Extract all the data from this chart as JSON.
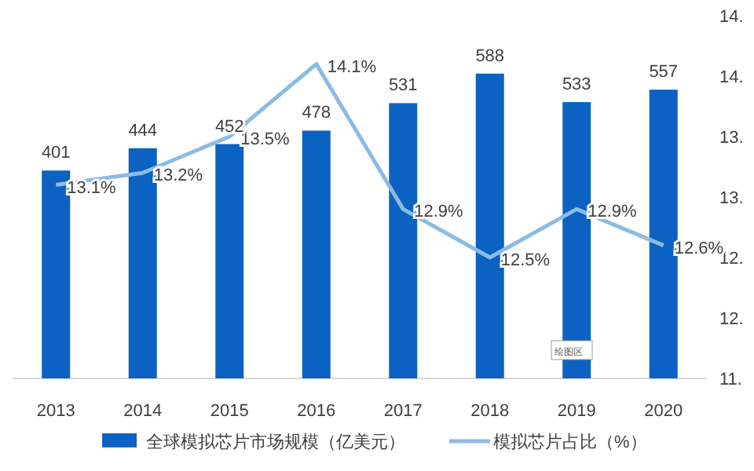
{
  "chart_data": {
    "type": "bar",
    "categories": [
      "2013",
      "2014",
      "2015",
      "2016",
      "2017",
      "2018",
      "2019",
      "2020"
    ],
    "series": [
      {
        "name": "全球模拟芯片市场规模（亿美元）",
        "color": "#0b62c2",
        "values": [
          401,
          444,
          452,
          478,
          531,
          588,
          533,
          557
        ],
        "value_labels": [
          "401",
          "444",
          "452",
          "478",
          "531",
          "588",
          "533",
          "557"
        ]
      },
      {
        "name": "模拟芯片占比（%）",
        "type": "line",
        "axis": "y2",
        "color": "#8cbbe3",
        "values": [
          13.1,
          13.2,
          13.5,
          14.1,
          12.9,
          12.5,
          12.9,
          12.6
        ],
        "value_labels": [
          "13.1%",
          "13.2%",
          "13.5%",
          "14.1%",
          "12.9%",
          "12.5%",
          "12.9%",
          "12.6%"
        ]
      }
    ],
    "y2lim": [
      11.5,
      14.5
    ],
    "y2ticks": [
      {
        "value": 11.5,
        "label": "11."
      },
      {
        "value": 12.0,
        "label": "12."
      },
      {
        "value": 12.5,
        "label": "12."
      },
      {
        "value": 13.0,
        "label": "13."
      },
      {
        "value": 13.5,
        "label": "13."
      },
      {
        "value": 14.0,
        "label": "14."
      },
      {
        "value": 14.5,
        "label": "14."
      }
    ],
    "legend": "bottom",
    "marker": "none",
    "line_style": "solid",
    "annotations": [
      "绘图区"
    ]
  }
}
